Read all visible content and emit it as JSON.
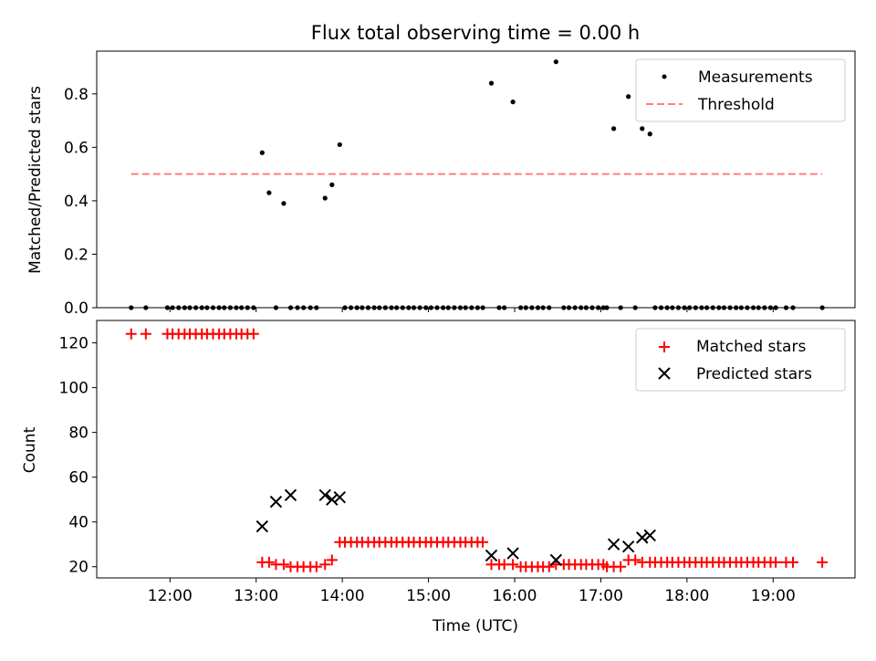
{
  "chart_data": [
    {
      "type": "scatter",
      "title": "Flux total observing time = 0.00 h",
      "ylabel": "Matched/Predicted stars",
      "xlabel": "",
      "xlim": [
        11.15,
        19.95
      ],
      "ylim": [
        0,
        0.96
      ],
      "yticks": [
        "0.0",
        "0.2",
        "0.4",
        "0.6",
        "0.8"
      ],
      "legend_position": "top-right",
      "series": [
        {
          "name": "Measurements",
          "style": "dot",
          "color": "#000000",
          "x": [
            11.55,
            11.72,
            11.97,
            12.03,
            12.1,
            12.17,
            12.23,
            12.3,
            12.37,
            12.43,
            12.5,
            12.57,
            12.63,
            12.7,
            12.77,
            12.83,
            12.9,
            12.97,
            13.07,
            13.15,
            13.23,
            13.32,
            13.4,
            13.48,
            13.55,
            13.63,
            13.7,
            13.8,
            13.88,
            13.97,
            14.03,
            14.1,
            14.17,
            14.23,
            14.3,
            14.37,
            14.43,
            14.5,
            14.57,
            14.63,
            14.7,
            14.77,
            14.83,
            14.9,
            14.97,
            15.03,
            15.1,
            15.17,
            15.23,
            15.3,
            15.37,
            15.43,
            15.5,
            15.57,
            15.63,
            15.73,
            15.82,
            15.88,
            15.98,
            16.07,
            16.13,
            16.2,
            16.27,
            16.33,
            16.4,
            16.48,
            16.57,
            16.63,
            16.7,
            16.77,
            16.83,
            16.9,
            16.97,
            17.03,
            17.07,
            17.15,
            17.23,
            17.32,
            17.4,
            17.48,
            17.57,
            17.63,
            17.7,
            17.77,
            17.83,
            17.9,
            17.97,
            18.03,
            18.1,
            18.17,
            18.23,
            18.3,
            18.37,
            18.43,
            18.5,
            18.57,
            18.63,
            18.7,
            18.77,
            18.83,
            18.9,
            18.97,
            19.03,
            19.15,
            19.23,
            19.57
          ],
          "y": [
            0,
            0,
            0,
            0,
            0,
            0,
            0,
            0,
            0,
            0,
            0,
            0,
            0,
            0,
            0,
            0,
            0,
            0,
            0.58,
            0.43,
            0,
            0.39,
            0,
            0,
            0,
            0,
            0,
            0.41,
            0.46,
            0.61,
            0,
            0,
            0,
            0,
            0,
            0,
            0,
            0,
            0,
            0,
            0,
            0,
            0,
            0,
            0,
            0,
            0,
            0,
            0,
            0,
            0,
            0,
            0,
            0,
            0,
            0.84,
            0,
            0,
            0.77,
            0,
            0,
            0,
            0,
            0,
            0,
            0.92,
            0,
            0,
            0,
            0,
            0,
            0,
            0,
            0,
            0,
            0.67,
            0,
            0.79,
            0,
            0.67,
            0.65,
            0,
            0,
            0,
            0,
            0,
            0,
            0,
            0,
            0,
            0,
            0,
            0,
            0,
            0,
            0,
            0,
            0,
            0,
            0,
            0,
            0,
            0,
            0,
            0,
            0
          ]
        },
        {
          "name": "Threshold",
          "style": "dashed-line",
          "color": "#ff7f7f",
          "x": [
            11.55,
            19.57
          ],
          "y": [
            0.5,
            0.5
          ]
        }
      ]
    },
    {
      "type": "scatter",
      "title": "",
      "ylabel": "Count",
      "xlabel": "Time (UTC)",
      "xlim": [
        11.15,
        19.95
      ],
      "ylim": [
        15,
        130
      ],
      "yticks": [
        "20",
        "40",
        "60",
        "80",
        "100",
        "120"
      ],
      "xticks": [
        "12:00",
        "13:00",
        "14:00",
        "15:00",
        "16:00",
        "17:00",
        "18:00",
        "19:00"
      ],
      "legend_position": "top-right",
      "series": [
        {
          "name": "Matched stars",
          "style": "plus",
          "color": "#ff0000",
          "x": [
            11.55,
            11.72,
            11.97,
            12.03,
            12.1,
            12.17,
            12.23,
            12.3,
            12.37,
            12.43,
            12.5,
            12.57,
            12.63,
            12.7,
            12.77,
            12.83,
            12.9,
            12.97,
            13.07,
            13.15,
            13.23,
            13.32,
            13.4,
            13.48,
            13.55,
            13.63,
            13.7,
            13.8,
            13.88,
            13.97,
            14.03,
            14.1,
            14.17,
            14.23,
            14.3,
            14.37,
            14.43,
            14.5,
            14.57,
            14.63,
            14.7,
            14.77,
            14.83,
            14.9,
            14.97,
            15.03,
            15.1,
            15.17,
            15.23,
            15.3,
            15.37,
            15.43,
            15.5,
            15.57,
            15.63,
            15.73,
            15.82,
            15.88,
            15.98,
            16.07,
            16.13,
            16.2,
            16.27,
            16.33,
            16.4,
            16.48,
            16.57,
            16.63,
            16.7,
            16.77,
            16.83,
            16.9,
            16.97,
            17.03,
            17.07,
            17.15,
            17.23,
            17.32,
            17.4,
            17.48,
            17.57,
            17.63,
            17.7,
            17.77,
            17.83,
            17.9,
            17.97,
            18.03,
            18.1,
            18.17,
            18.23,
            18.3,
            18.37,
            18.43,
            18.5,
            18.57,
            18.63,
            18.7,
            18.77,
            18.83,
            18.9,
            18.97,
            19.03,
            19.15,
            19.23,
            19.57
          ],
          "y": [
            124,
            124,
            124,
            124,
            124,
            124,
            124,
            124,
            124,
            124,
            124,
            124,
            124,
            124,
            124,
            124,
            124,
            124,
            22,
            22,
            21,
            21,
            20,
            20,
            20,
            20,
            20,
            21,
            23,
            31,
            31,
            31,
            31,
            31,
            31,
            31,
            31,
            31,
            31,
            31,
            31,
            31,
            31,
            31,
            31,
            31,
            31,
            31,
            31,
            31,
            31,
            31,
            31,
            31,
            31,
            21,
            21,
            21,
            21,
            20,
            20,
            20,
            20,
            20,
            20,
            21,
            21,
            21,
            21,
            21,
            21,
            21,
            21,
            21,
            20,
            20,
            20,
            23,
            23,
            22,
            22,
            22,
            22,
            22,
            22,
            22,
            22,
            22,
            22,
            22,
            22,
            22,
            22,
            22,
            22,
            22,
            22,
            22,
            22,
            22,
            22,
            22,
            22,
            22,
            22,
            22
          ]
        },
        {
          "name": "Predicted stars",
          "style": "x",
          "color": "#000000",
          "x": [
            13.07,
            13.23,
            13.4,
            13.8,
            13.88,
            13.97,
            15.73,
            15.98,
            16.48,
            17.15,
            17.32,
            17.48,
            17.57
          ],
          "y": [
            38,
            49,
            52,
            52,
            50,
            51,
            25,
            26,
            23,
            30,
            29,
            33,
            34
          ]
        }
      ]
    }
  ]
}
